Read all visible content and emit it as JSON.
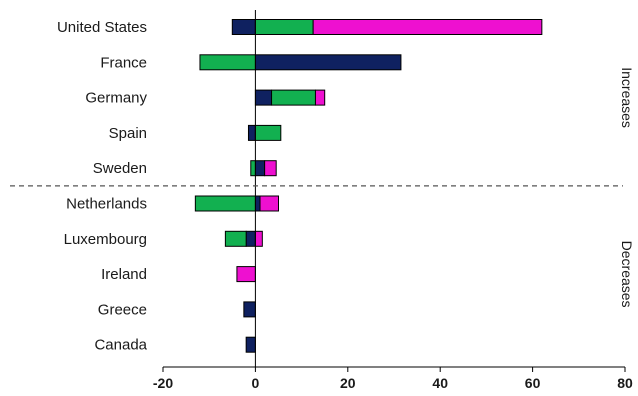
{
  "chart_data": {
    "type": "bar",
    "orientation": "horizontal",
    "stacked": true,
    "categories": [
      "United States",
      "France",
      "Germany",
      "Spain",
      "Sweden",
      "Netherlands",
      "Luxembourg",
      "Ireland",
      "Greece",
      "Canada"
    ],
    "xlim": [
      -20,
      80
    ],
    "xticks": [
      -20,
      0,
      20,
      40,
      60,
      80
    ],
    "grid": false,
    "series": [
      {
        "color": "#0f2160",
        "values": [
          -5,
          31.5,
          3.5,
          -1.5,
          2,
          1,
          -2,
          0,
          -2.5,
          -2
        ]
      },
      {
        "color": "#12b050",
        "values": [
          12.5,
          -12,
          9.5,
          5.5,
          -1,
          -13,
          -4.5,
          0,
          0,
          0
        ]
      },
      {
        "color": "#ee10d0",
        "values": [
          49.5,
          0,
          2,
          0,
          2.5,
          4,
          1.5,
          -4,
          0,
          0
        ]
      }
    ],
    "groups": [
      {
        "label": "Increases",
        "from": 0,
        "to": 4
      },
      {
        "label": "Decreases",
        "from": 5,
        "to": 9
      }
    ]
  }
}
